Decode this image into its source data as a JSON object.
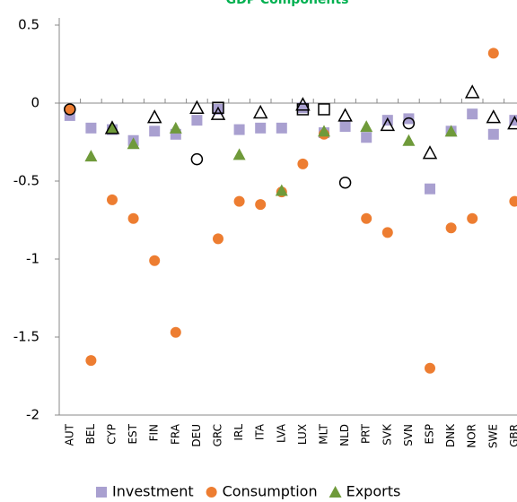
{
  "chart_data": {
    "type": "scatter",
    "title": "GDP Components",
    "categories": [
      "AUT",
      "BEL",
      "CYP",
      "EST",
      "FIN",
      "FRA",
      "DEU",
      "GRC",
      "IRL",
      "ITA",
      "LVA",
      "LUX",
      "MLT",
      "NLD",
      "PRT",
      "SVK",
      "SVN",
      "ESP",
      "DNK",
      "NOR",
      "SWE",
      "GBR"
    ],
    "ylim": [
      -2,
      0.5
    ],
    "yticks": [
      0.5,
      0,
      -0.5,
      -1,
      -1.5,
      -2
    ],
    "series": [
      {
        "name": "Investment",
        "color": "#a9a0d0",
        "marker": "square",
        "filled": true,
        "values": [
          -0.08,
          -0.16,
          -0.17,
          -0.24,
          -0.18,
          -0.2,
          -0.11,
          -0.04,
          -0.17,
          -0.16,
          -0.16,
          -0.03,
          -0.19,
          -0.15,
          -0.22,
          -0.11,
          -0.1,
          -0.55,
          -0.18,
          -0.07,
          -0.2,
          -0.11
        ]
      },
      {
        "name": "Consumption",
        "color": "#ed7d31",
        "marker": "circle",
        "filled": true,
        "values": [
          -0.04,
          -1.65,
          -0.62,
          -0.74,
          -1.01,
          -1.47,
          null,
          -0.87,
          -0.63,
          -0.65,
          -0.57,
          -0.39,
          -0.2,
          null,
          -0.74,
          -0.83,
          null,
          -1.7,
          -0.8,
          -0.74,
          0.32,
          -0.63
        ]
      },
      {
        "name": "Exports",
        "color": "#6f9a3a",
        "marker": "triangle",
        "filled": true,
        "values": [
          null,
          -0.34,
          -0.16,
          -0.26,
          null,
          -0.16,
          null,
          null,
          -0.33,
          null,
          -0.56,
          null,
          -0.18,
          null,
          -0.15,
          null,
          -0.24,
          null,
          -0.18,
          null,
          null,
          null
        ]
      },
      {
        "color": "#000000",
        "marker": "triangle",
        "filled": false,
        "values": [
          null,
          null,
          -0.16,
          null,
          -0.09,
          null,
          -0.03,
          -0.07,
          null,
          -0.06,
          null,
          -0.01,
          null,
          -0.08,
          null,
          -0.14,
          null,
          -0.32,
          null,
          0.07,
          -0.09,
          -0.13
        ]
      },
      {
        "color": "#000000",
        "marker": "circle",
        "filled": false,
        "values": [
          -0.04,
          null,
          null,
          null,
          null,
          null,
          -0.36,
          null,
          null,
          null,
          null,
          null,
          null,
          -0.51,
          null,
          null,
          -0.13,
          null,
          null,
          null,
          null,
          null
        ]
      },
      {
        "color": "#000000",
        "marker": "square",
        "filled": false,
        "values": [
          null,
          null,
          null,
          null,
          null,
          null,
          null,
          -0.03,
          null,
          null,
          null,
          -0.04,
          -0.04,
          null,
          null,
          null,
          null,
          null,
          null,
          null,
          null,
          null
        ]
      }
    ]
  }
}
